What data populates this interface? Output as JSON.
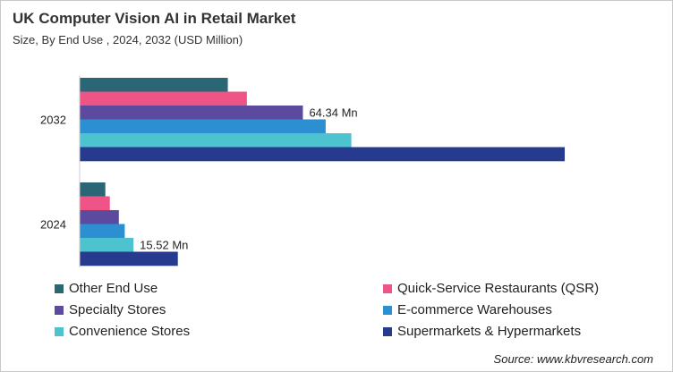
{
  "title": "UK Computer Vision AI in Retail Market",
  "subtitle": "Size, By End Use , 2024, 2032 (USD Million)",
  "source": "Source: www.kbvresearch.com",
  "chart_data": {
    "type": "bar",
    "orientation": "horizontal",
    "title": "UK Computer Vision AI in Retail Market",
    "subtitle": "Size, By End Use , 2024, 2032 (USD Million)",
    "categories": [
      "2032",
      "2024"
    ],
    "xlim": [
      0,
      140
    ],
    "grid": false,
    "legend_position": "bottom",
    "series": [
      {
        "name": "Other End Use",
        "color": "#2a6674",
        "values": [
          42.7,
          7.4
        ]
      },
      {
        "name": "Quick-Service Restaurants (QSR)",
        "color": "#ee5486",
        "values": [
          48.2,
          8.7
        ]
      },
      {
        "name": "Specialty Stores",
        "color": "#5b4a9e",
        "values": [
          64.34,
          11.3
        ]
      },
      {
        "name": "E-commerce Warehouses",
        "color": "#2b8fd2",
        "values": [
          70.9,
          13.0
        ]
      },
      {
        "name": "Convenience Stores",
        "color": "#4cc3cf",
        "values": [
          78.3,
          15.52
        ]
      },
      {
        "name": "Supermarkets & Hypermarkets",
        "color": "#263a8e",
        "values": [
          139.8,
          28.3
        ]
      }
    ],
    "annotations": [
      {
        "category": "2032",
        "series": "Specialty Stores",
        "text": "64.34 Mn"
      },
      {
        "category": "2024",
        "series": "Convenience Stores",
        "text": "15.52 Mn"
      }
    ]
  }
}
